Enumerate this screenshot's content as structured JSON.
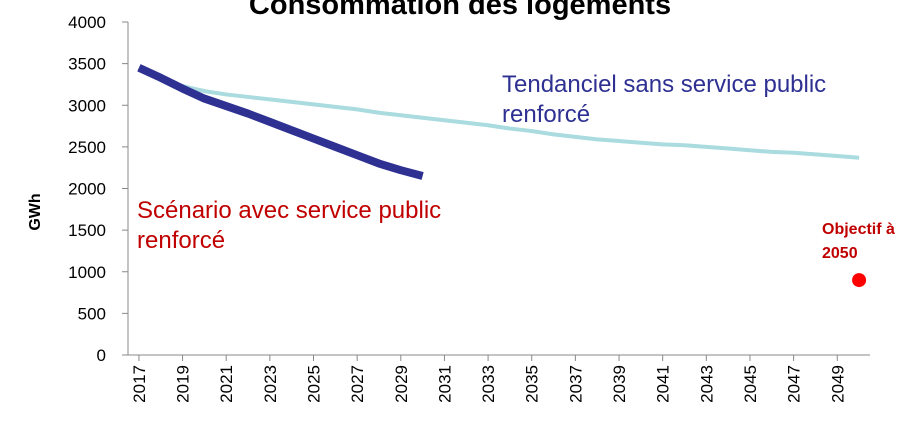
{
  "chart_data": {
    "type": "line",
    "title": "Consommation des logements",
    "y_label": "GWh",
    "x": [
      2017,
      2018,
      2019,
      2020,
      2021,
      2022,
      2023,
      2024,
      2025,
      2026,
      2027,
      2028,
      2029,
      2030,
      2031,
      2032,
      2033,
      2034,
      2035,
      2036,
      2037,
      2038,
      2039,
      2040,
      2041,
      2042,
      2043,
      2044,
      2045,
      2046,
      2047,
      2048,
      2049,
      2050
    ],
    "series": [
      {
        "name": "Tendanciel sans service public renforcé",
        "color": "#a9dbdf",
        "label_color": "#2e3192",
        "width": 4,
        "values": [
          3450,
          3330,
          3230,
          3170,
          3130,
          3100,
          3070,
          3040,
          3010,
          2980,
          2950,
          2910,
          2880,
          2850,
          2820,
          2790,
          2760,
          2720,
          2690,
          2650,
          2620,
          2590,
          2570,
          2550,
          2530,
          2520,
          2500,
          2480,
          2460,
          2440,
          2430,
          2410,
          2390,
          2370
        ]
      },
      {
        "name": "Scénario avec service public renforcé",
        "color": "#2e3192",
        "label_color": "#c00000",
        "width": 8,
        "values": [
          3450,
          3330,
          3200,
          3080,
          2990,
          2900,
          2800,
          2700,
          2600,
          2500,
          2400,
          2300,
          2220,
          2150,
          null,
          null,
          null,
          null,
          null,
          null,
          null,
          null,
          null,
          null,
          null,
          null,
          null,
          null,
          null,
          null,
          null,
          null,
          null,
          null
        ]
      }
    ],
    "target": {
      "label": "Objectif à 2050",
      "x": 2050,
      "y": 900,
      "color": "#ff0000",
      "label_color": "#c00000"
    },
    "xlim": [
      2016.5,
      2050.5
    ],
    "xticks": [
      {
        "value": 2017,
        "label": "2017"
      },
      {
        "value": 2019,
        "label": "2019"
      },
      {
        "value": 2021,
        "label": "2021"
      },
      {
        "value": 2023,
        "label": "2023"
      },
      {
        "value": 2025,
        "label": "2025"
      },
      {
        "value": 2027,
        "label": "2027"
      },
      {
        "value": 2029,
        "label": "2029"
      },
      {
        "value": 2031,
        "label": "2031"
      },
      {
        "value": 2033,
        "label": "2033"
      },
      {
        "value": 2035,
        "label": "2035"
      },
      {
        "value": 2037,
        "label": "2037"
      },
      {
        "value": 2039,
        "label": "2039"
      },
      {
        "value": 2041,
        "label": "2041"
      },
      {
        "value": 2043,
        "label": "2043"
      },
      {
        "value": 2045,
        "label": "2045"
      },
      {
        "value": 2047,
        "label": "2047"
      },
      {
        "value": 2049,
        "label": "2049"
      }
    ],
    "ylim": [
      0,
      4000
    ],
    "yticks": [
      0,
      500,
      1000,
      1500,
      2000,
      2500,
      3000,
      3500,
      4000
    ],
    "grid": false
  }
}
